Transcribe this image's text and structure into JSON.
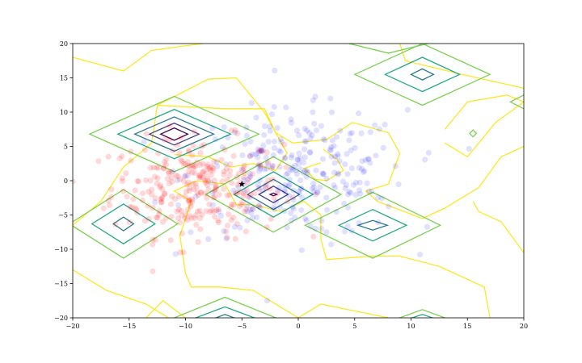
{
  "chart_data": {
    "type": "scatter",
    "title": "",
    "xlabel": "",
    "ylabel": "",
    "xlim": [
      -20,
      20
    ],
    "ylim": [
      -20,
      20
    ],
    "xticks": [
      -20,
      -15,
      -10,
      -5,
      0,
      5,
      10,
      15,
      20
    ],
    "yticks": [
      -20,
      -15,
      -10,
      -5,
      0,
      5,
      10,
      15,
      20
    ],
    "tick_labels_x": [
      "−20",
      "−15",
      "−10",
      "−5",
      "0",
      "5",
      "10",
      "15",
      "20"
    ],
    "tick_labels_y": [
      "−20",
      "−15",
      "−10",
      "−5",
      "0",
      "5",
      "10",
      "15",
      "20"
    ],
    "grid": false,
    "series": [
      {
        "kind": "points",
        "color": "#ff0000",
        "alpha": 0.15,
        "count": 300,
        "center": [
          -9.0,
          -1.0
        ],
        "spread": [
          3.8,
          3.6
        ]
      },
      {
        "kind": "points",
        "color": "#0000ff",
        "alpha": 0.12,
        "count": 280,
        "center": [
          0.0,
          1.0
        ],
        "spread": [
          4.8,
          4.6
        ]
      },
      {
        "kind": "marker",
        "shape": "star",
        "color": "#000000",
        "points": [
          [
            -5.0,
            -0.5
          ]
        ]
      }
    ],
    "contours": {
      "level_colors": [
        "#fde725",
        "#7ad151",
        "#22a884",
        "#2a788e",
        "#414487",
        "#440154"
      ],
      "peaks": [
        {
          "center": [
            -11.0,
            6.8
          ],
          "rings": [
            [
              7.5,
              5.5
            ],
            [
              5.0,
              3.6
            ],
            [
              3.5,
              2.5
            ],
            [
              2.2,
              1.6
            ],
            [
              1.2,
              0.9
            ]
          ]
        },
        {
          "center": [
            -2.2,
            -2.0
          ],
          "rings": [
            [
              6.0,
              5.5
            ],
            [
              3.5,
              3.3
            ],
            [
              2.3,
              2.2
            ],
            [
              1.3,
              1.2
            ],
            [
              0.3,
              0.2
            ]
          ]
        },
        {
          "center": [
            -15.5,
            -6.3
          ],
          "rings": [
            [
              4.8,
              5.0
            ],
            [
              2.8,
              2.9
            ],
            [
              0.9,
              1.0
            ]
          ]
        },
        {
          "center": [
            6.6,
            -6.5
          ],
          "rings": [
            [
              6.0,
              4.8
            ],
            [
              3.0,
              2.3
            ],
            [
              1.3,
              0.7
            ]
          ]
        },
        {
          "center": [
            11.0,
            15.5
          ],
          "rings": [
            [
              6.0,
              4.5
            ],
            [
              3.3,
              2.5
            ],
            [
              1.0,
              0.8
            ]
          ]
        },
        {
          "center": [
            15.5,
            6.9
          ],
          "rings": [
            [
              0.3,
              0.5
            ]
          ]
        },
        {
          "center": [
            20.0,
            11.5
          ],
          "rings": [
            [
              1.2,
              1.0
            ]
          ]
        },
        {
          "center": [
            -6.5,
            -20.0
          ],
          "rings": [
            [
              4.5,
              3.0
            ],
            [
              2.6,
              1.6
            ],
            [
              0.8,
              0.5
            ]
          ]
        },
        {
          "center": [
            11.0,
            -20.0
          ],
          "rings": [
            [
              2.0,
              1.2
            ],
            [
              0.9,
              0.5
            ]
          ]
        },
        {
          "center": [
            8.0,
            20.0
          ],
          "rings": [
            [
              3.5,
              1.4
            ]
          ]
        }
      ],
      "outer_level": [
        [
          [
            -20,
            18.0
          ],
          [
            -15.5,
            16.0
          ],
          [
            -13.0,
            19.0
          ],
          [
            -8.5,
            20.0
          ]
        ],
        [
          [
            -20,
            -6.5
          ],
          [
            -17.5,
            -3.0
          ],
          [
            -15.5,
            2.0
          ],
          [
            -13.0,
            5.5
          ],
          [
            -12.5,
            11.0
          ],
          [
            -8.0,
            14.8
          ],
          [
            -5.5,
            15.0
          ],
          [
            -3.0,
            10.0
          ],
          [
            -1.0,
            4.0
          ],
          [
            -2.0,
            1.5
          ],
          [
            -4.0,
            2.5
          ],
          [
            -6.0,
            2.0
          ],
          [
            -8.0,
            3.5
          ],
          [
            -11.0,
            3.8
          ]
        ],
        [
          [
            -12.5,
            11.0
          ],
          [
            -6.5,
            10.5
          ],
          [
            -3.0,
            10.5
          ],
          [
            -2.0,
            7.0
          ],
          [
            -0.5,
            5.5
          ],
          [
            2.5,
            6.0
          ],
          [
            4.8,
            8.5
          ],
          [
            8.0,
            7.0
          ],
          [
            9.0,
            4.0
          ],
          [
            8.0,
            -0.5
          ],
          [
            6.0,
            -1.5
          ],
          [
            7.0,
            -3.0
          ],
          [
            11.0,
            -5.5
          ],
          [
            13.0,
            -4.0
          ],
          [
            16.0,
            -1.0
          ],
          [
            18.0,
            3.5
          ],
          [
            20.0,
            5.0
          ]
        ],
        [
          [
            9.0,
            20.0
          ],
          [
            9.5,
            17.5
          ],
          [
            14.5,
            15.5
          ],
          [
            20.0,
            13.5
          ]
        ],
        [
          [
            2.2,
            4.6
          ],
          [
            3.5,
            3.0
          ],
          [
            4.0,
            1.5
          ],
          [
            2.5,
            0.0
          ],
          [
            1.5,
            0.2
          ],
          [
            0.5,
            1.8
          ],
          [
            2.0,
            2.6
          ]
        ],
        [
          [
            13.0,
            7.5
          ],
          [
            15.0,
            11.5
          ],
          [
            18.5,
            12.5
          ],
          [
            20.0,
            11.5
          ],
          [
            17.5,
            8.5
          ],
          [
            15.0,
            3.5
          ],
          [
            13.0,
            5.5
          ]
        ],
        [
          [
            20.0,
            -10.5
          ],
          [
            18.0,
            -6.0
          ],
          [
            16.0,
            -4.5
          ],
          [
            15.5,
            -3.0
          ]
        ],
        [
          [
            -20,
            -13.0
          ],
          [
            -17.0,
            -16.0
          ],
          [
            -13.5,
            -18.0
          ],
          [
            -11.5,
            -20.0
          ]
        ],
        [
          [
            -9.5,
            -3.0
          ],
          [
            -11.0,
            -1.5
          ],
          [
            -9.0,
            0.0
          ],
          [
            -6.5,
            -0.5
          ],
          [
            -5.5,
            -3.5
          ],
          [
            -4.0,
            -3.5
          ],
          [
            -1.5,
            -4.5
          ],
          [
            0.5,
            -3.0
          ],
          [
            2.0,
            -5.0
          ],
          [
            2.0,
            -8.5
          ],
          [
            2.5,
            -11.5
          ],
          [
            6.5,
            -11.0
          ],
          [
            9.0,
            -11.0
          ],
          [
            12.5,
            -12.5
          ],
          [
            16.5,
            -15.5
          ],
          [
            17.0,
            -20.0
          ]
        ],
        [
          [
            -9.5,
            -3.0
          ],
          [
            -10.5,
            -8.0
          ],
          [
            -10.0,
            -13.5
          ],
          [
            -9.5,
            -15.5
          ],
          [
            -7.0,
            -15.5
          ],
          [
            -4.0,
            -16.0
          ],
          [
            0.0,
            -20.0
          ]
        ],
        [
          [
            0.0,
            -20.0
          ],
          [
            2.0,
            -18.0
          ],
          [
            5.0,
            -19.0
          ],
          [
            8.0,
            -20.0
          ]
        ],
        [
          [
            -13.5,
            -20.0
          ],
          [
            -12.0,
            -17.5
          ],
          [
            -10.0,
            -20.0
          ]
        ]
      ]
    }
  }
}
